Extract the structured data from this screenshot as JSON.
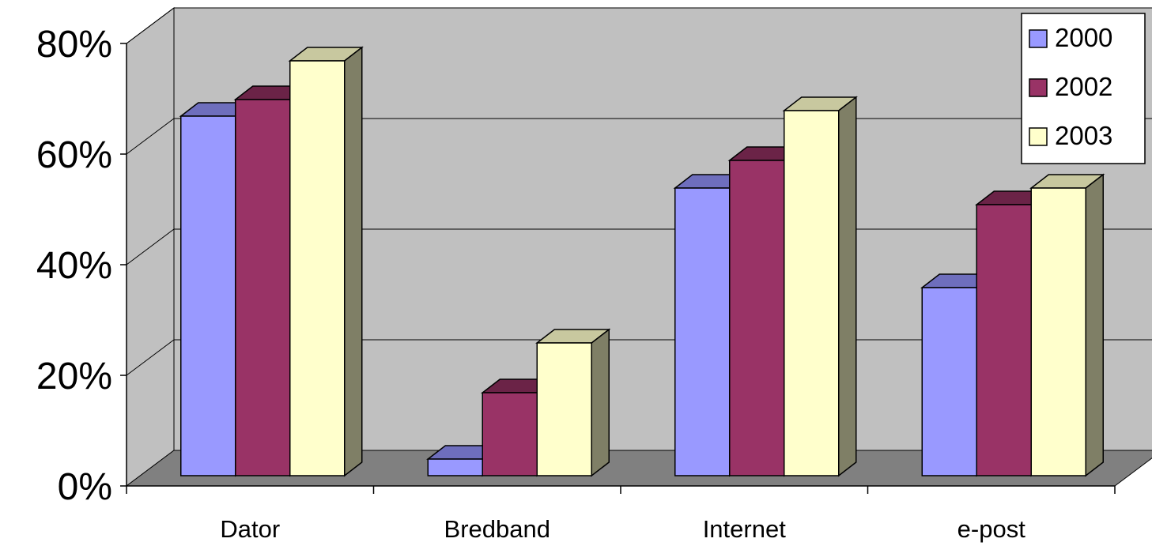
{
  "chart_data": {
    "type": "bar",
    "categories": [
      "Dator",
      "Bredband",
      "Internet",
      "e-post"
    ],
    "series": [
      {
        "name": "2000",
        "values": [
          65,
          3,
          52,
          34
        ],
        "color": "#9999ff",
        "top_color": "#6e6ebd",
        "side_color": "#52528c"
      },
      {
        "name": "2002",
        "values": [
          68,
          15,
          57,
          49
        ],
        "color": "#993366",
        "top_color": "#6b2347",
        "side_color": "#511a35"
      },
      {
        "name": "2003",
        "values": [
          75,
          24,
          66,
          52
        ],
        "color": "#ffffcc",
        "top_color": "#c8c89f",
        "side_color": "#7f7f66"
      }
    ],
    "y_ticks": [
      "0%",
      "20%",
      "40%",
      "60%",
      "80%"
    ],
    "ylim": [
      0,
      80
    ],
    "y_unit": "%",
    "grid": true,
    "legend_position": "top-right",
    "wall_color": "#c0c0c0",
    "floor_color": "#808080"
  }
}
